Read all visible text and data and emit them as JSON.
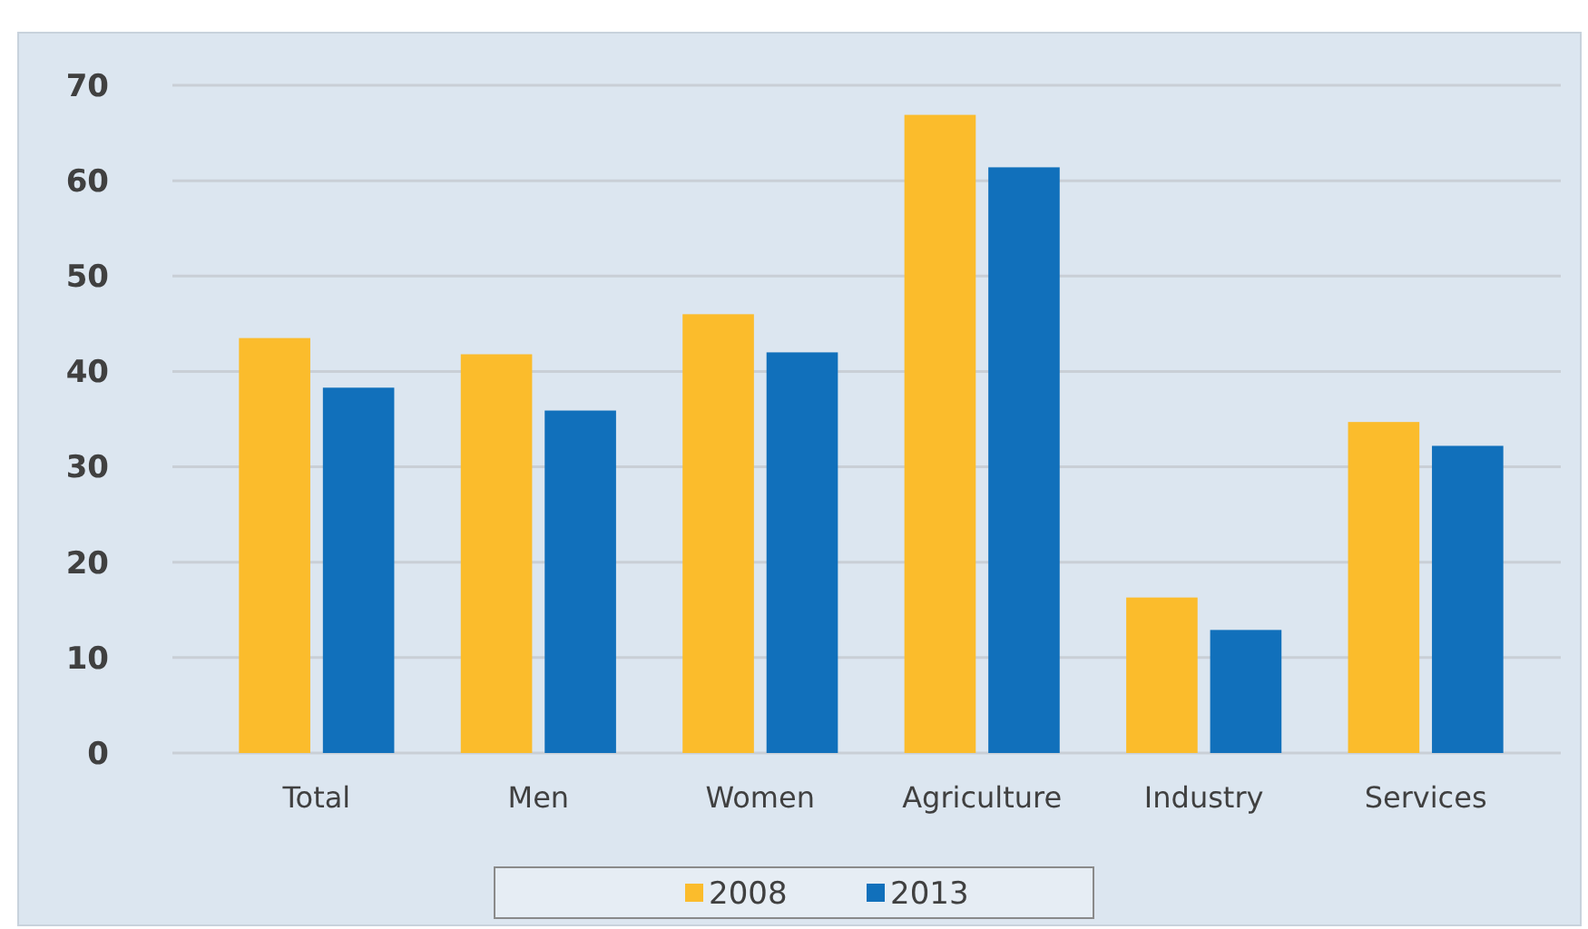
{
  "chart_data": {
    "type": "bar",
    "categories": [
      "Total",
      "Men",
      "Women",
      "Agriculture",
      "Industry",
      "Services"
    ],
    "series": [
      {
        "name": "2008",
        "color": "#fbbc2c",
        "values": [
          43.5,
          41.8,
          46.0,
          66.9,
          16.3,
          34.7
        ]
      },
      {
        "name": "2013",
        "color": "#1170bb",
        "values": [
          38.3,
          35.9,
          42.0,
          61.4,
          12.9,
          32.2
        ]
      }
    ],
    "ylim": [
      0,
      70
    ],
    "yticks": [
      0,
      10,
      20,
      30,
      40,
      50,
      60,
      70
    ],
    "grid": "y",
    "legend": "bottom"
  }
}
